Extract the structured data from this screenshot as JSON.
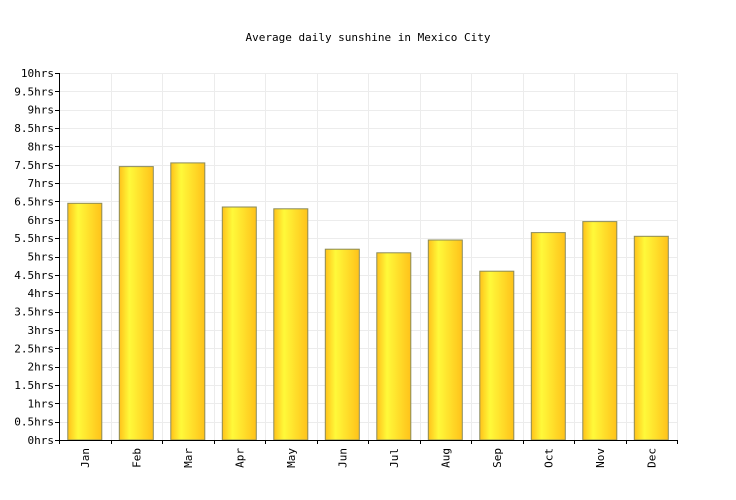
{
  "chart_data": {
    "type": "bar",
    "title": "Average daily sunshine in Mexico City",
    "xlabel": "",
    "ylabel": "",
    "categories": [
      "Jan",
      "Feb",
      "Mar",
      "Apr",
      "May",
      "Jun",
      "Jul",
      "Aug",
      "Sep",
      "Oct",
      "Nov",
      "Dec"
    ],
    "values": [
      6.45,
      7.45,
      7.55,
      6.35,
      6.3,
      5.2,
      5.1,
      5.45,
      4.6,
      5.65,
      5.95,
      5.55
    ],
    "ylim": [
      0,
      10
    ],
    "yticks": [
      0,
      0.5,
      1,
      1.5,
      2,
      2.5,
      3,
      3.5,
      4,
      4.5,
      5,
      5.5,
      6,
      6.5,
      7,
      7.5,
      8,
      8.5,
      9,
      9.5,
      10
    ],
    "ytick_labels": [
      "0hrs",
      "0.5hrs",
      "1hrs",
      "1.5hrs",
      "2hrs",
      "2.5hrs",
      "3hrs",
      "3.5hrs",
      "4hrs",
      "4.5hrs",
      "5hrs",
      "5.5hrs",
      "6hrs",
      "6.5hrs",
      "7hrs",
      "7.5hrs",
      "8hrs",
      "8.5hrs",
      "9hrs",
      "9.5hrs",
      "10hrs"
    ],
    "grid": true,
    "legend": "none",
    "colors": {
      "bar_light": "#fff93a",
      "bar_dark": "#ffc21a",
      "bar_border": "#8a8a5a",
      "grid": "#ececec",
      "axis": "#000000"
    }
  }
}
